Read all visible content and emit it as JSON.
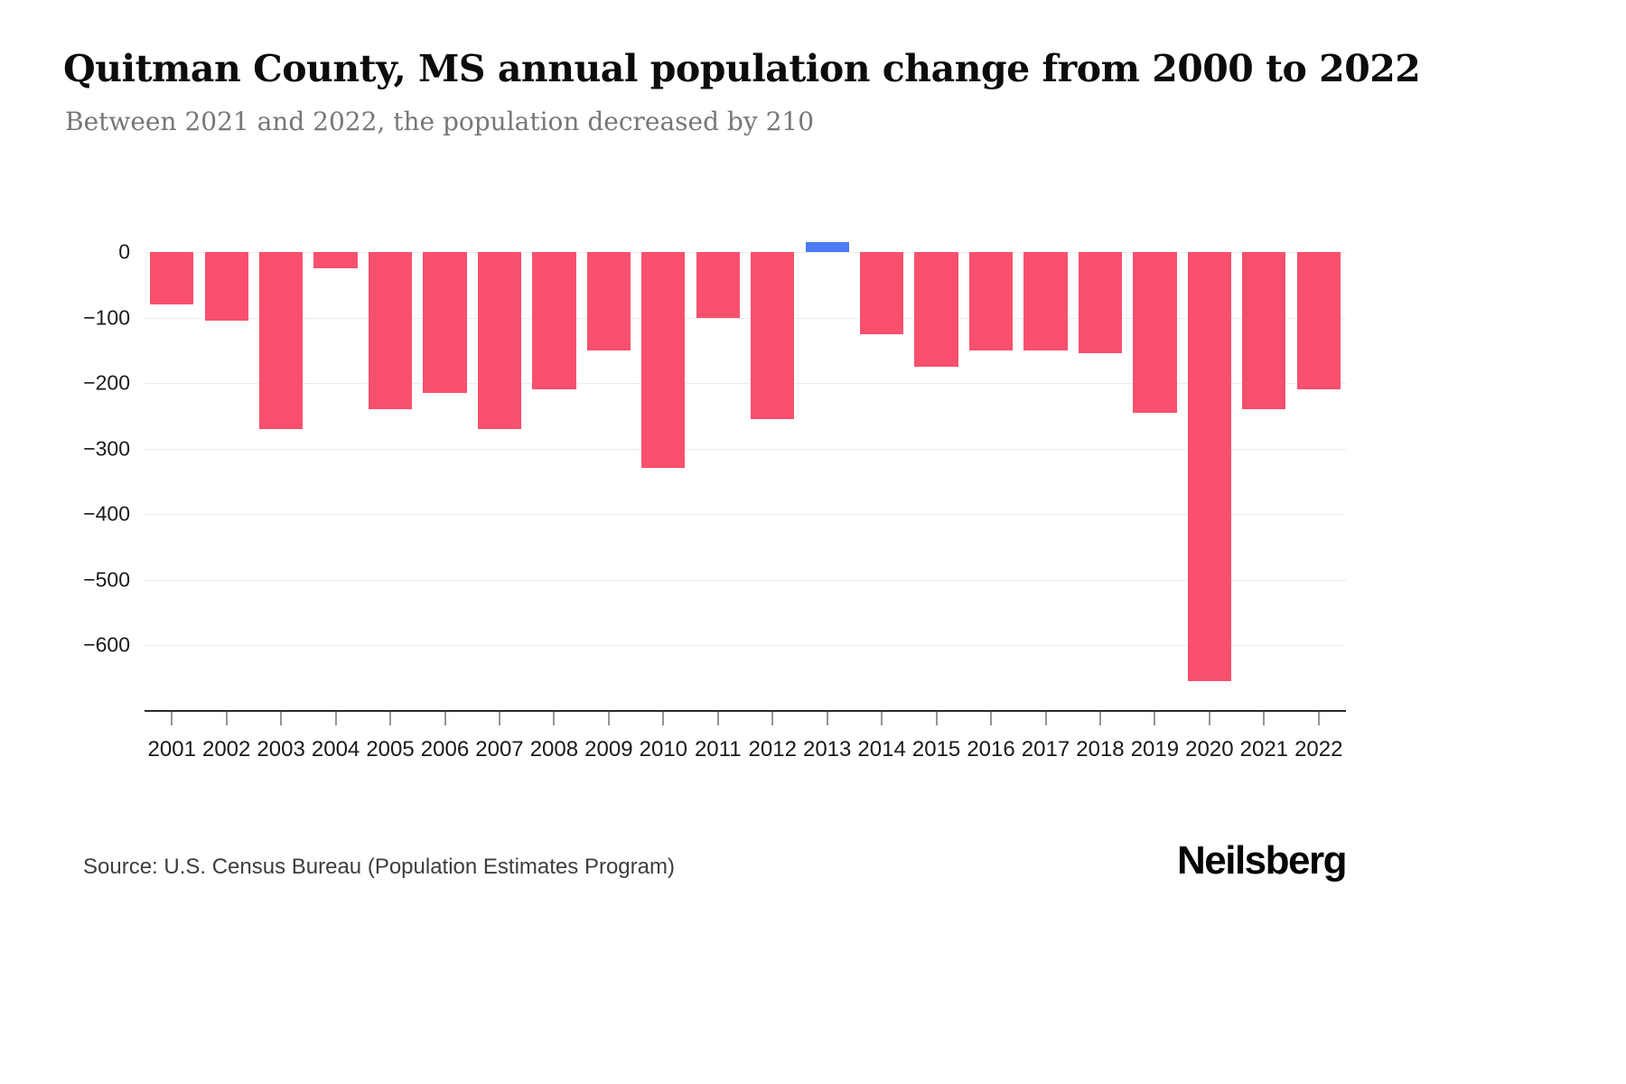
{
  "header": {
    "title": "Quitman County, MS annual population change from 2000 to 2022",
    "subtitle": "Between 2021 and 2022, the population decreased by 210"
  },
  "footer": {
    "source": "Source: U.S. Census Bureau (Population Estimates Program)",
    "brand": "Neilsberg"
  },
  "colors": {
    "negative_bar": "#F9506E",
    "positive_bar": "#4B7BF5",
    "gridline": "#ebebeb",
    "axis_line": "#2b2b2b",
    "tick_label": "#1a1a1a",
    "subtitle_text": "#777777"
  },
  "chart_data": {
    "type": "bar",
    "title": "Quitman County, MS annual population change from 2000 to 2022",
    "subtitle": "Between 2021 and 2022, the population decreased by 210",
    "xlabel": "",
    "ylabel": "",
    "categories": [
      "2001",
      "2002",
      "2003",
      "2004",
      "2005",
      "2006",
      "2007",
      "2008",
      "2009",
      "2010",
      "2011",
      "2012",
      "2013",
      "2014",
      "2015",
      "2016",
      "2017",
      "2018",
      "2019",
      "2020",
      "2021",
      "2022"
    ],
    "values": [
      -80,
      -105,
      -270,
      -25,
      -240,
      -215,
      -270,
      -210,
      -150,
      -330,
      -100,
      -255,
      15,
      -125,
      -175,
      -150,
      -150,
      -155,
      -245,
      -655,
      -240,
      -210
    ],
    "ylim": [
      -700,
      40
    ],
    "yticks": [
      0,
      -100,
      -200,
      -300,
      -400,
      -500,
      -600
    ],
    "grid": true,
    "legend": "none",
    "bar_color_rule": "negative values pink-red, positive values blue"
  }
}
